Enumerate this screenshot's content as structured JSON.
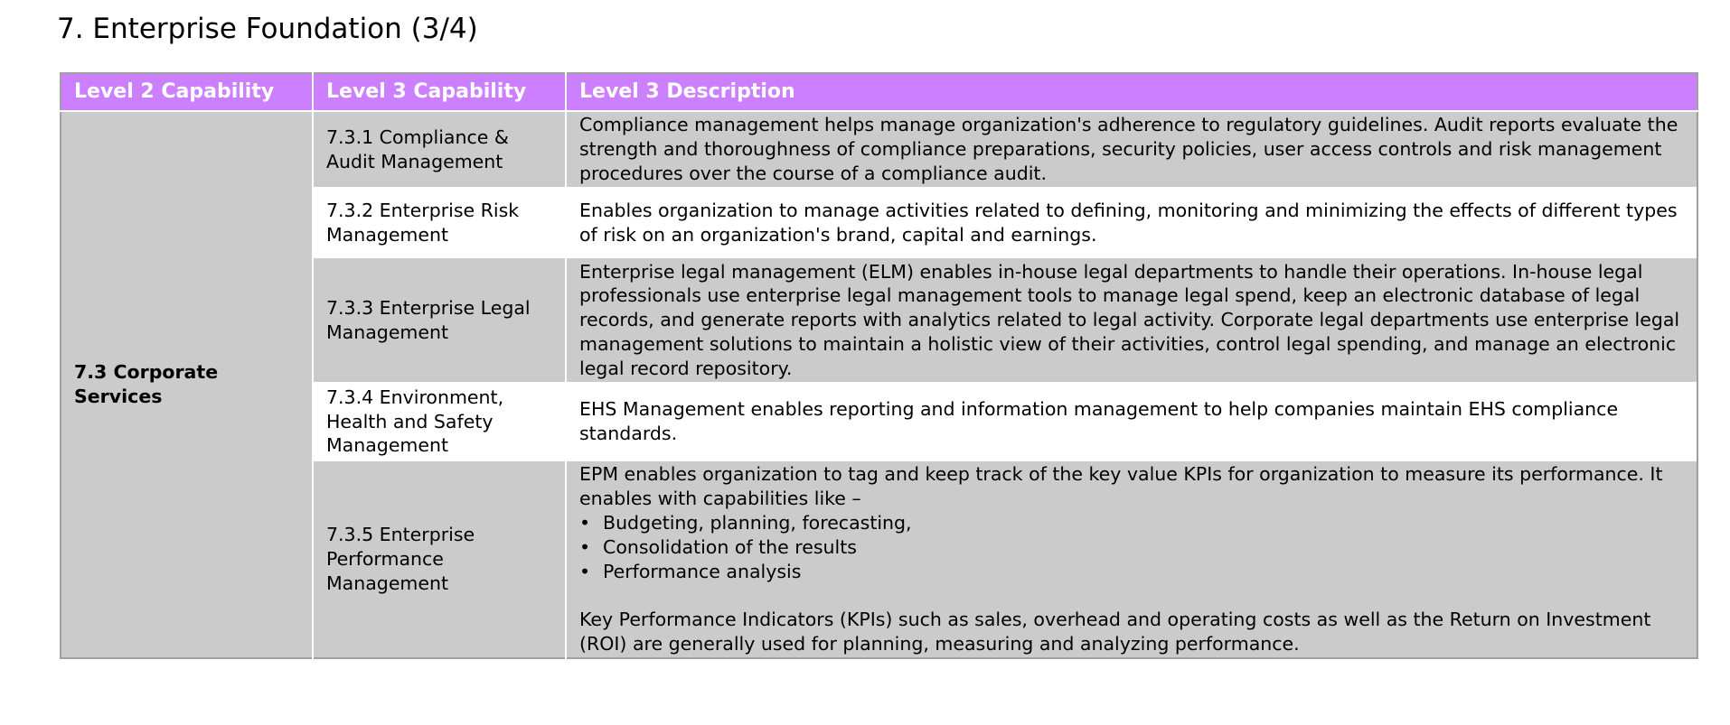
{
  "page": {
    "title": "7. Enterprise Foundation (3/4)"
  },
  "table": {
    "headers": [
      "Level 2 Capability",
      "Level 3 Capability",
      "Level 3 Description"
    ],
    "level2": "7.3 Corporate Services",
    "rows": [
      {
        "level3": "7.3.1 Compliance & Audit Management",
        "description": "Compliance management helps manage organization's adherence to regulatory guidelines. Audit reports evaluate the strength and thoroughness of compliance preparations, security policies, user access controls and risk management procedures over the course of a compliance audit."
      },
      {
        "level3": "7.3.2 Enterprise Risk Management",
        "description": "Enables organization to manage activities related to defining, monitoring and minimizing the effects of different types of risk on an organization's brand, capital and earnings."
      },
      {
        "level3": "7.3.3 Enterprise Legal Management",
        "description": "Enterprise legal management (ELM) enables in-house legal departments to handle their operations. In-house legal professionals use enterprise legal management tools to manage legal spend, keep an electronic database of legal records, and generate reports with analytics related to legal activity. Corporate legal departments use enterprise legal management solutions to maintain a holistic view of their activities, control legal spending, and manage an electronic legal record repository."
      },
      {
        "level3": "7.3.4 Environment, Health and Safety Management",
        "description": "EHS Management enables reporting and information management to help companies maintain EHS compliance standards."
      },
      {
        "level3": "7.3.5 Enterprise Performance Management",
        "description": "EPM enables organization to tag and keep track of the key value KPIs for organization to measure its performance. It enables with capabilities like –",
        "bullets": [
          "Budgeting, planning, forecasting,",
          "Consolidation of the results",
          "Performance analysis"
        ],
        "footer": "Key Performance Indicators (KPIs) such as sales, overhead and operating costs as well as the Return on Investment (ROI) are generally used for planning, measuring and analyzing performance."
      }
    ]
  },
  "colors": {
    "header_bg": "#cc80ff",
    "header_text": "#ffffff",
    "row_grey": "#cbcbcb",
    "row_white": "#ffffff",
    "border": "#a0a0a0"
  }
}
